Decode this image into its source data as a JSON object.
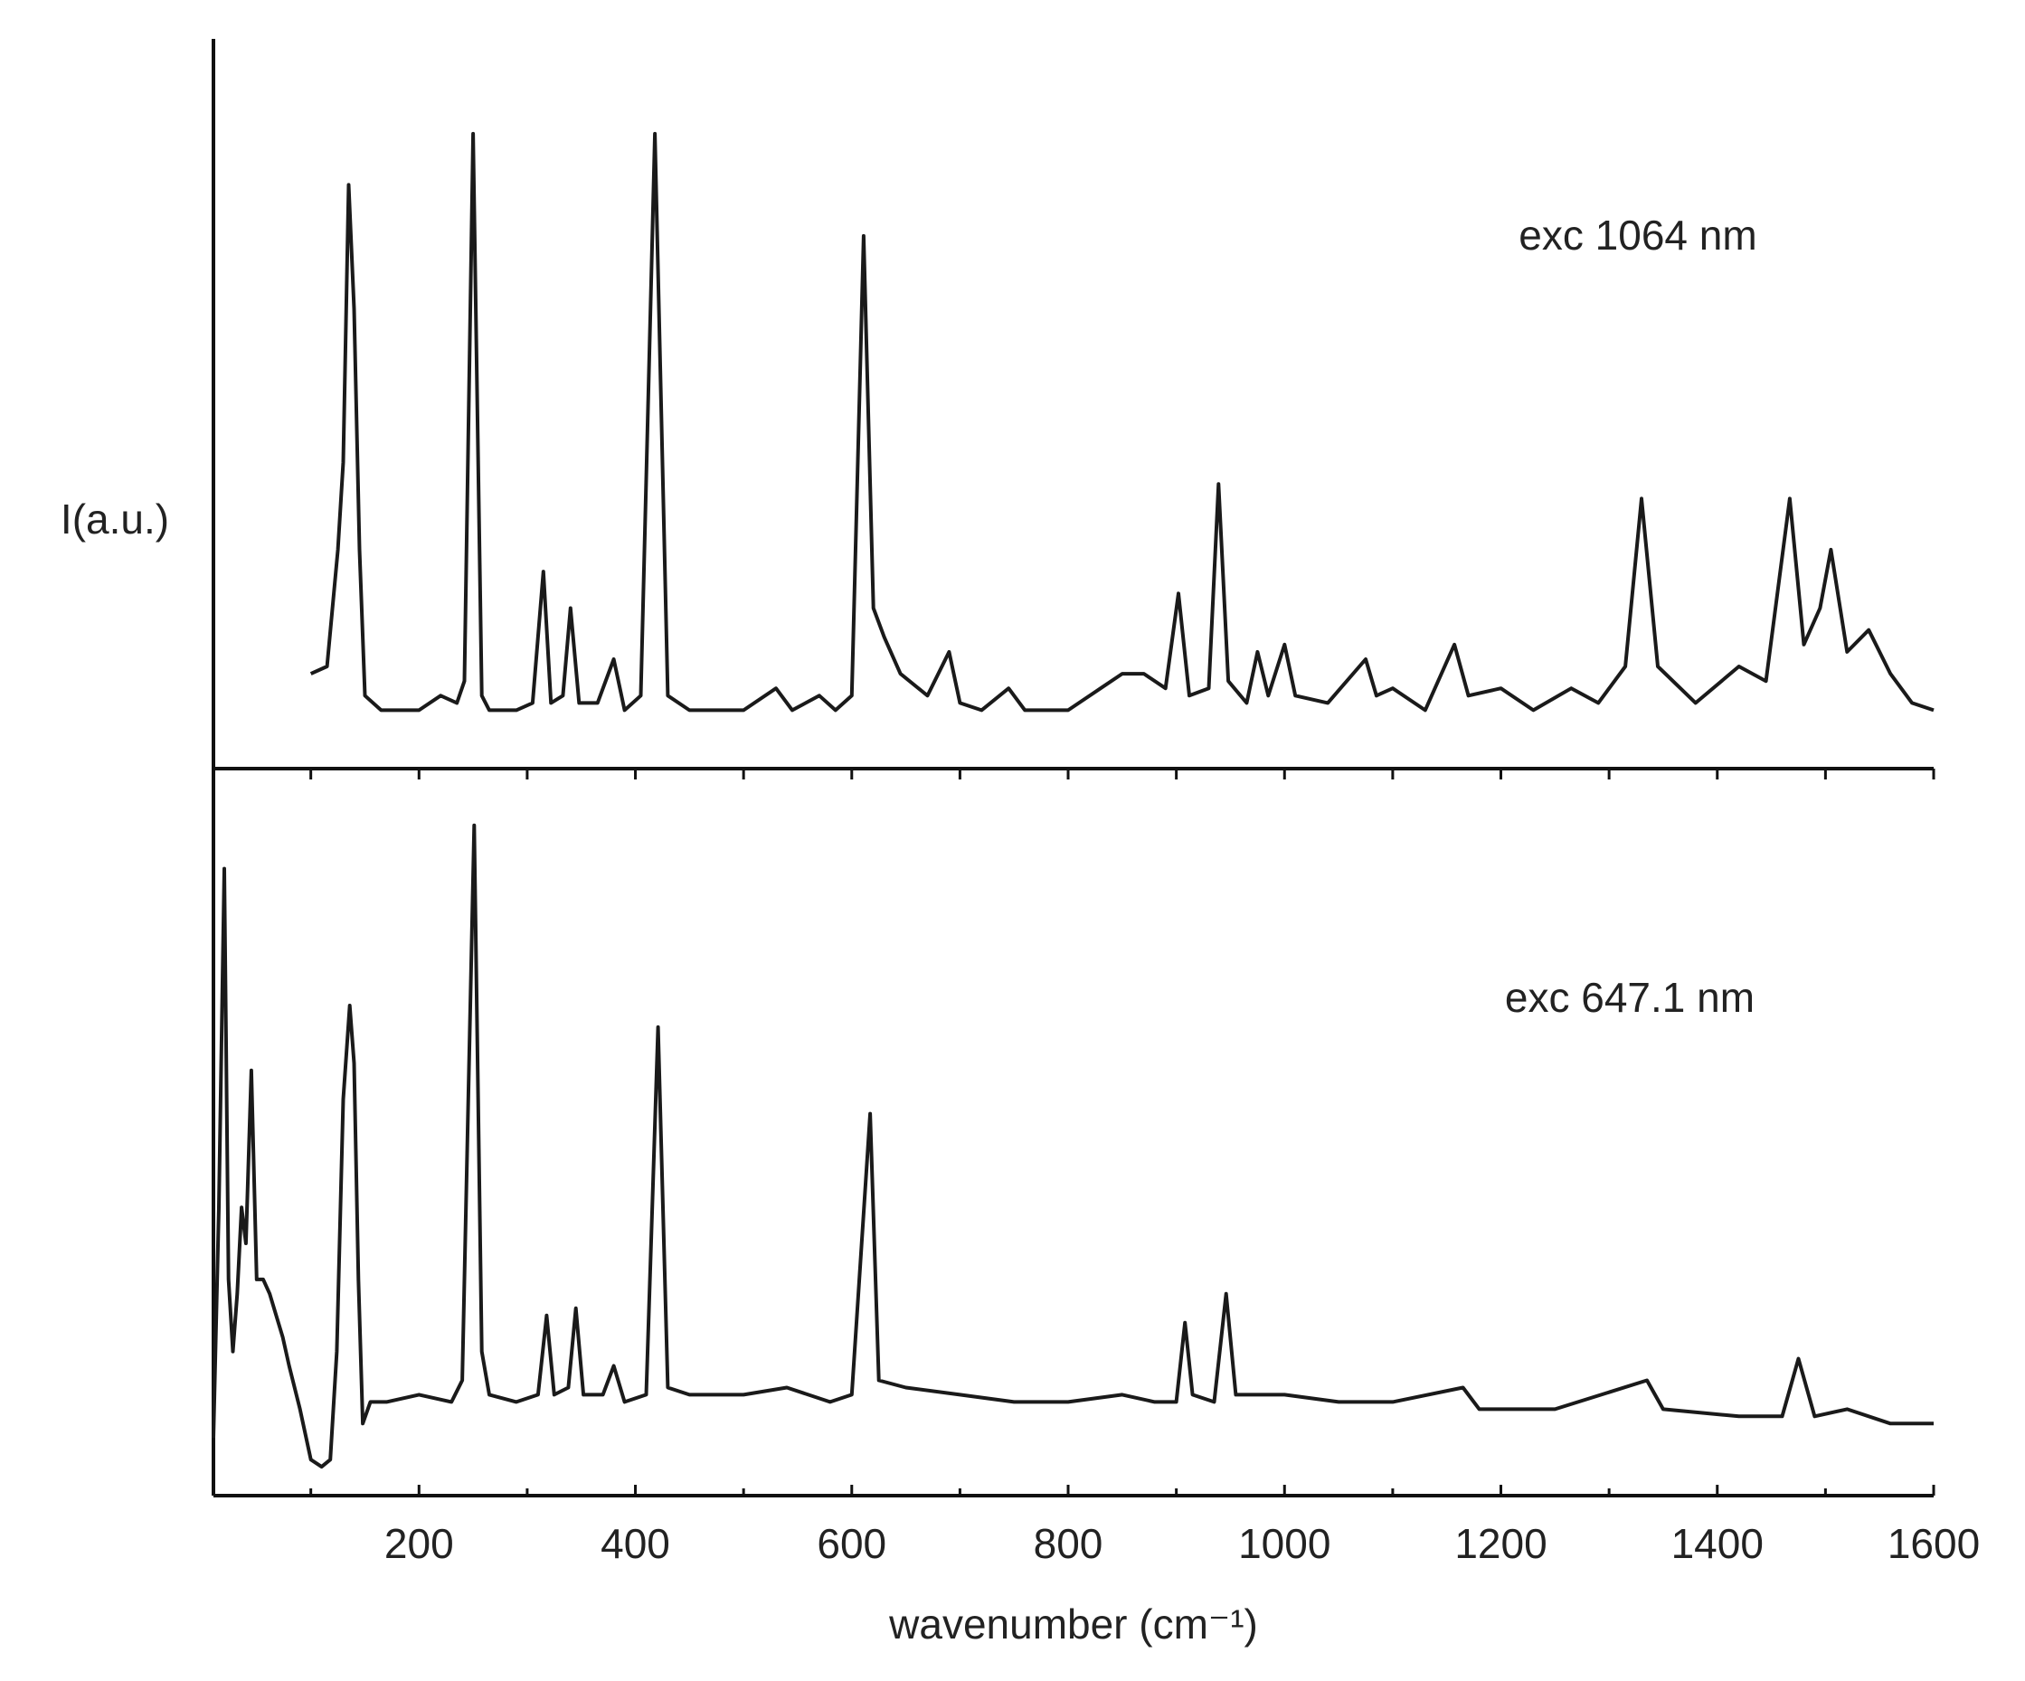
{
  "chart_data": [
    {
      "type": "line",
      "ylabel": "I(a.u.)",
      "xlim": [
        10,
        1600
      ],
      "ylim": [
        0,
        100
      ],
      "xticks": [
        100,
        200,
        300,
        400,
        500,
        600,
        700,
        800,
        900,
        1000,
        1100,
        1200,
        1300,
        1400,
        1500,
        1600
      ],
      "tick_labels": false,
      "series": [
        {
          "name": "exc 1064 nm",
          "color": "#1a1a1a",
          "x": [
            100,
            115,
            125,
            130,
            135,
            140,
            145,
            150,
            165,
            200,
            220,
            235,
            242,
            250,
            258,
            265,
            290,
            305,
            315,
            322,
            333,
            340,
            348,
            365,
            380,
            390,
            405,
            418,
            430,
            450,
            500,
            530,
            545,
            570,
            585,
            600,
            611,
            620,
            630,
            645,
            670,
            690,
            700,
            720,
            745,
            760,
            800,
            830,
            850,
            870,
            890,
            902,
            912,
            930,
            939,
            948,
            965,
            975,
            985,
            1000,
            1010,
            1040,
            1075,
            1085,
            1100,
            1130,
            1157,
            1170,
            1200,
            1230,
            1265,
            1290,
            1315,
            1330,
            1345,
            1380,
            1420,
            1445,
            1467,
            1480,
            1495,
            1505,
            1520,
            1540,
            1560,
            1580,
            1600
          ],
          "values": [
            13,
            14,
            30,
            42,
            80,
            63,
            30,
            10,
            8,
            8,
            10,
            9,
            12,
            87,
            10,
            8,
            8,
            9,
            27,
            9,
            10,
            22,
            9,
            9,
            15,
            8,
            10,
            87,
            10,
            8,
            8,
            11,
            8,
            10,
            8,
            10,
            73,
            22,
            18,
            13,
            10,
            16,
            9,
            8,
            11,
            8,
            8,
            11,
            13,
            13,
            11,
            24,
            10,
            11,
            39,
            12,
            9,
            16,
            10,
            17,
            10,
            9,
            15,
            10,
            11,
            8,
            17,
            10,
            11,
            8,
            11,
            9,
            14,
            37,
            14,
            9,
            14,
            12,
            37,
            17,
            22,
            30,
            16,
            19,
            13,
            9,
            8
          ]
        }
      ]
    },
    {
      "type": "line",
      "xlabel": "wavenumber (cm⁻¹)",
      "xlim": [
        10,
        1600
      ],
      "ylim": [
        0,
        100
      ],
      "xticks": [
        200,
        400,
        600,
        800,
        1000,
        1200,
        1400,
        1600
      ],
      "xminorticks": [
        100,
        300,
        500,
        700,
        900,
        1100,
        1300,
        1500
      ],
      "tick_labels": true,
      "series": [
        {
          "name": "exc 647.1 nm",
          "color": "#1a1a1a",
          "x": [
            10,
            15,
            20,
            24,
            28,
            32,
            36,
            40,
            45,
            50,
            56,
            62,
            68,
            74,
            80,
            90,
            100,
            110,
            118,
            124,
            130,
            136,
            140,
            144,
            148,
            155,
            170,
            200,
            230,
            240,
            251,
            258,
            265,
            290,
            310,
            318,
            325,
            338,
            345,
            352,
            370,
            380,
            390,
            410,
            421,
            430,
            450,
            500,
            540,
            580,
            600,
            617,
            625,
            650,
            700,
            750,
            800,
            850,
            880,
            900,
            908,
            915,
            935,
            946,
            955,
            1000,
            1050,
            1100,
            1165,
            1180,
            1250,
            1335,
            1350,
            1420,
            1460,
            1475,
            1490,
            1520,
            1560,
            1600
          ],
          "values": [
            8,
            40,
            87,
            30,
            20,
            28,
            40,
            35,
            59,
            30,
            30,
            28,
            25,
            22,
            18,
            12,
            5,
            4,
            5,
            20,
            55,
            68,
            60,
            30,
            10,
            13,
            13,
            14,
            13,
            16,
            93,
            20,
            14,
            13,
            14,
            25,
            14,
            15,
            26,
            14,
            14,
            18,
            13,
            14,
            65,
            15,
            14,
            14,
            15,
            13,
            14,
            53,
            16,
            15,
            14,
            13,
            13,
            14,
            13,
            13,
            24,
            14,
            13,
            28,
            14,
            14,
            13,
            13,
            15,
            12,
            12,
            16,
            12,
            11,
            11,
            19,
            11,
            12,
            10,
            10
          ]
        }
      ]
    }
  ]
}
